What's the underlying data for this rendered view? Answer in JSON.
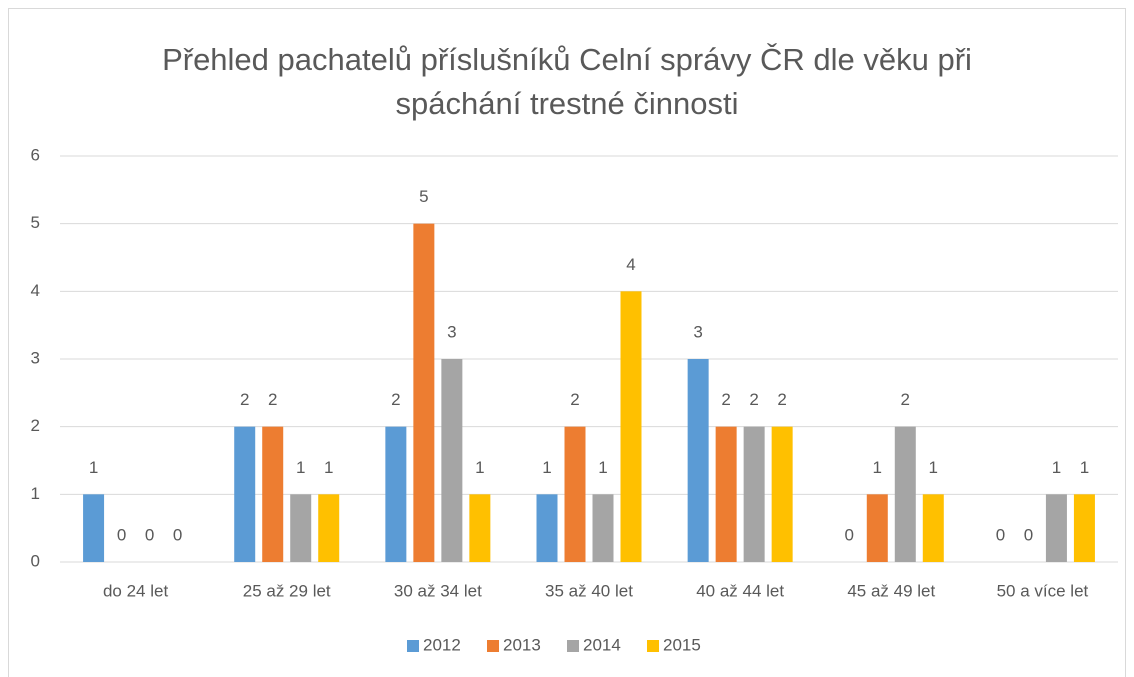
{
  "chart_data": {
    "type": "bar",
    "title": "Přehled pachatelů příslušníků Celní správy ČR dle věku při spáchání trestné činnosti",
    "categories": [
      "do 24 let",
      "25 až 29 let",
      "30 až 34 let",
      "35 až 40 let",
      "40 až 44 let",
      "45 až 49 let",
      "50 a více let"
    ],
    "series": [
      {
        "name": "2012",
        "color": "#5b9bd5",
        "values": [
          1,
          2,
          2,
          1,
          3,
          0,
          0
        ]
      },
      {
        "name": "2013",
        "color": "#ed7d31",
        "values": [
          0,
          2,
          5,
          2,
          2,
          1,
          0
        ]
      },
      {
        "name": "2014",
        "color": "#a5a5a5",
        "values": [
          0,
          1,
          3,
          1,
          2,
          2,
          1
        ]
      },
      {
        "name": "2015",
        "color": "#ffc000",
        "values": [
          0,
          1,
          1,
          4,
          2,
          1,
          1
        ]
      }
    ],
    "ylim": [
      0,
      6
    ],
    "yticks": [
      0,
      1,
      2,
      3,
      4,
      5,
      6
    ],
    "grid": true,
    "legend": "bottom",
    "data_labels": true
  }
}
